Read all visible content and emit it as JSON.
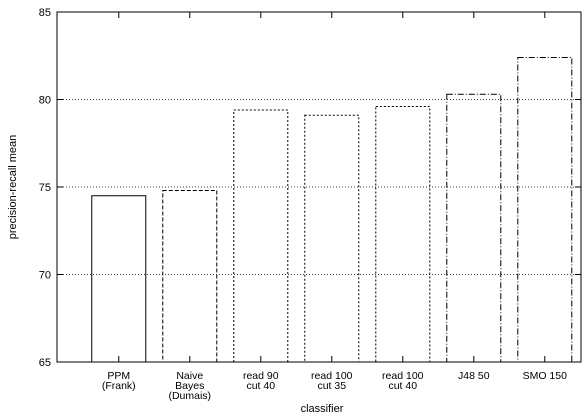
{
  "chart_data": {
    "type": "bar",
    "title": "",
    "xlabel": "classifier",
    "ylabel": "precision-recall mean",
    "ylim": [
      65,
      85
    ],
    "yticks": [
      65,
      70,
      75,
      80,
      85
    ],
    "grid": "horizontal dotted",
    "categories": [
      [
        "PPM",
        "(Frank)"
      ],
      [
        "Naive",
        "Bayes",
        "(Dumais)"
      ],
      [
        "read 90",
        "cut 40"
      ],
      [
        "read 100",
        "cut 35"
      ],
      [
        "read 100",
        "cut 40"
      ],
      [
        "J48 50"
      ],
      [
        "SMO 150"
      ]
    ],
    "values": [
      74.5,
      74.8,
      79.4,
      79.1,
      79.6,
      80.3,
      82.4
    ],
    "bar_styles": [
      "solid",
      "dashed",
      "dotted",
      "dotted",
      "dotted",
      "dash-dot",
      "dash-dot"
    ],
    "color": "#000000"
  }
}
